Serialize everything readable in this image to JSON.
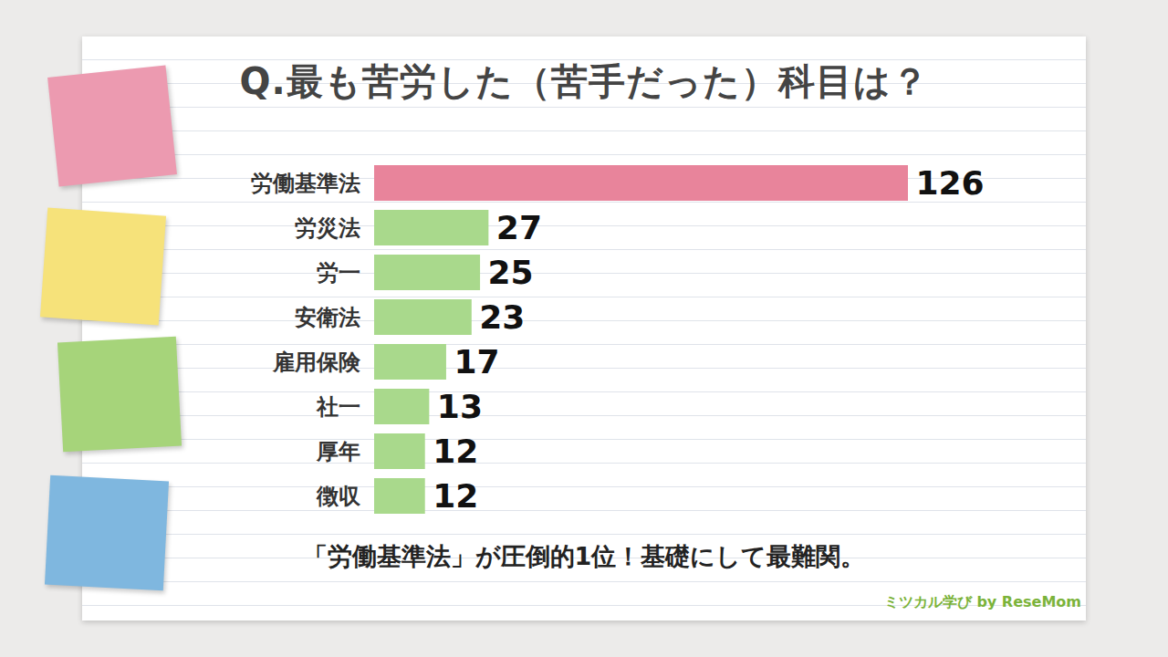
{
  "chart_data": {
    "type": "bar",
    "orientation": "horizontal",
    "title": "Q.最も苦労した（苦手だった）科目は？",
    "categories": [
      "労働基準法",
      "労災法",
      "労一",
      "安衛法",
      "雇用保険",
      "社一",
      "厚年",
      "徴収"
    ],
    "values": [
      126,
      27,
      25,
      23,
      17,
      13,
      12,
      12
    ],
    "colors": [
      "#e8849b",
      "#a9d98c",
      "#a9d98c",
      "#a9d98c",
      "#a9d98c",
      "#a9d98c",
      "#a9d98c",
      "#a9d98c"
    ],
    "xlim": [
      0,
      126
    ],
    "xticks": [],
    "data_labels": true,
    "tick_labels": "y",
    "grid": false,
    "caption": "「労働基準法」が圧倒的1位！基礎にして最難関。",
    "source": "ミツカル学び by ReseMom"
  }
}
